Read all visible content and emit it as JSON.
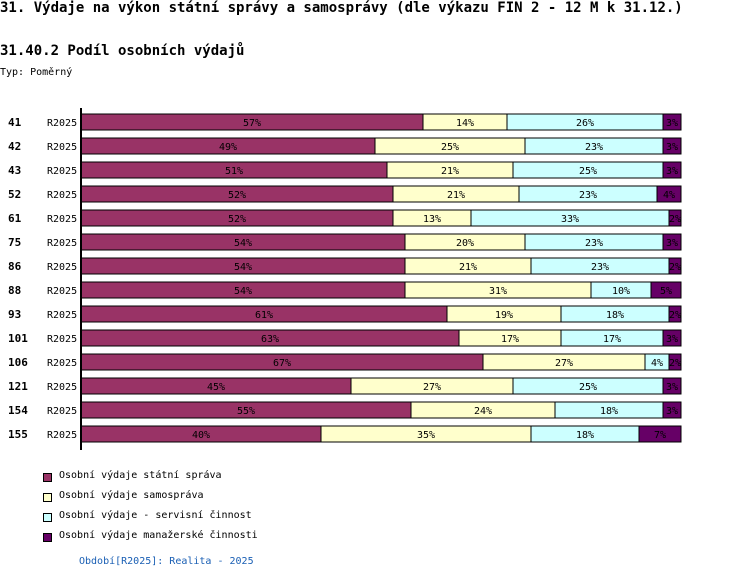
{
  "header": {
    "title": "31. Výdaje na výkon státní správy a samosprávy (dle výkazu FIN 2 - 12 M k 31.12.)",
    "subtitle": "31.40.2 Podíl osobních výdajů",
    "typ": "Typ: Poměrný"
  },
  "footer": {
    "text": "Období[R2025]: Realita - 2025"
  },
  "chart_data": {
    "type": "bar",
    "orientation": "horizontal",
    "stacked": true,
    "normalized": true,
    "categories": [
      "41",
      "42",
      "43",
      "52",
      "61",
      "75",
      "86",
      "88",
      "93",
      "101",
      "106",
      "121",
      "154",
      "155"
    ],
    "period_labels": [
      "R2025",
      "R2025",
      "R2025",
      "R2025",
      "R2025",
      "R2025",
      "R2025",
      "R2025",
      "R2025",
      "R2025",
      "R2025",
      "R2025",
      "R2025",
      "R2025"
    ],
    "series": [
      {
        "name": "Osobní výdaje státní správa",
        "color": "#993366",
        "values": [
          57,
          49,
          51,
          52,
          52,
          54,
          54,
          54,
          61,
          63,
          67,
          45,
          55,
          40
        ],
        "labels": [
          "57%",
          "49%",
          "51%",
          "52%",
          "52%",
          "54%",
          "54%",
          "54%",
          "61%",
          "63%",
          "67%",
          "45%",
          "55%",
          "40%"
        ]
      },
      {
        "name": "Osobní výdaje samospráva",
        "color": "#ffffcc",
        "values": [
          14,
          25,
          21,
          21,
          13,
          20,
          21,
          31,
          19,
          17,
          27,
          27,
          24,
          35
        ],
        "labels": [
          "14%",
          "25%",
          "21%",
          "21%",
          "13%",
          "20%",
          "21%",
          "31%",
          "19%",
          "17%",
          "27%",
          "27%",
          "24%",
          "35%"
        ]
      },
      {
        "name": "Osobní výdaje - servisní činnost",
        "color": "#ccffff",
        "values": [
          26,
          23,
          25,
          23,
          33,
          23,
          23,
          10,
          18,
          17,
          4,
          25,
          18,
          18
        ],
        "labels": [
          "26%",
          "23%",
          "25%",
          "23%",
          "33%",
          "23%",
          "23%",
          "10%",
          "18%",
          "17%",
          "4%",
          "25%",
          "18%",
          "18%"
        ]
      },
      {
        "name": "Osobní výdaje manažerské činnosti",
        "color": "#660066",
        "values": [
          3,
          3,
          3,
          4,
          2,
          3,
          2,
          5,
          2,
          3,
          2,
          3,
          3,
          7
        ],
        "labels": [
          "3%",
          "3%",
          "3%",
          "4%",
          "2%",
          "3%",
          "2%",
          "5%",
          "2%",
          "3%",
          "2%",
          "3%",
          "3%",
          "7%"
        ]
      }
    ],
    "xlim": [
      0,
      100
    ],
    "legend": "bottom-left"
  }
}
